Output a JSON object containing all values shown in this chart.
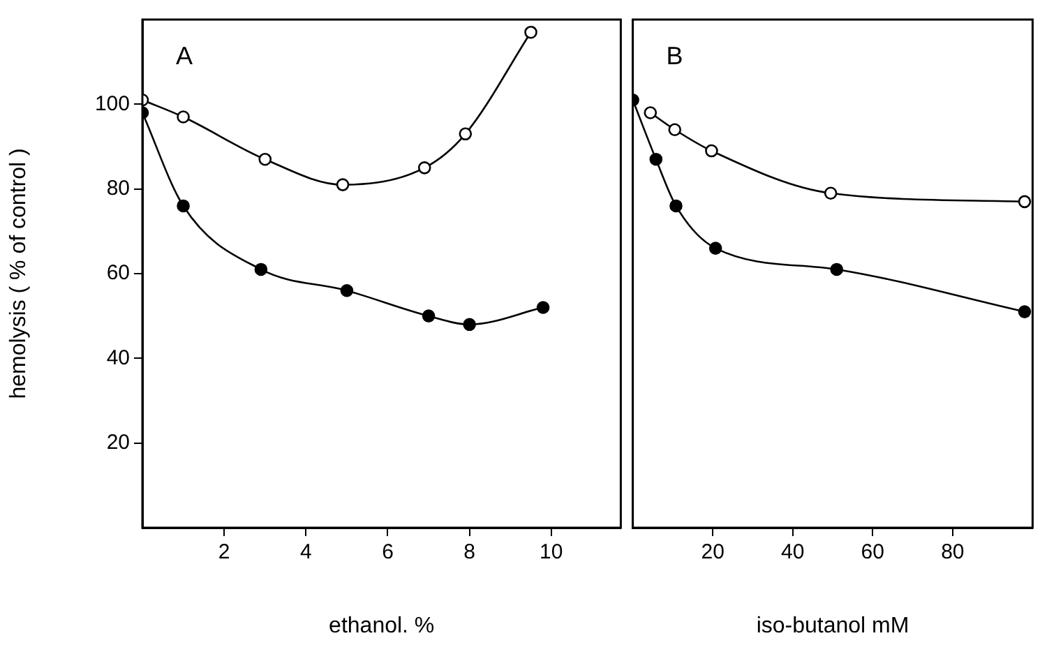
{
  "chart_data": [
    {
      "type": "line",
      "xlabel": "ethanol. %",
      "ylabel": "hemolysis ( % of control )",
      "annotations": [
        "A"
      ],
      "xlim": [
        0,
        11.7
      ],
      "xticks": [
        2,
        4,
        6,
        8,
        10
      ],
      "ylim": [
        0,
        120
      ],
      "yticks": [
        20,
        40,
        60,
        80,
        100
      ],
      "grid": false,
      "legend": false,
      "marker": "circle",
      "line_style": "solid",
      "series": [
        {
          "color": "#000000",
          "x": [
            0,
            1,
            3,
            4.9,
            6.9,
            7.9,
            9.5
          ],
          "values": [
            101,
            97,
            87,
            81,
            85,
            93,
            117
          ]
        },
        {
          "color": "#000000",
          "x": [
            0,
            1,
            2.9,
            5,
            7,
            8,
            9.8
          ],
          "values": [
            98,
            76,
            61,
            56,
            50,
            48,
            52
          ]
        }
      ]
    },
    {
      "type": "line",
      "xlabel": "iso-butanol mM",
      "annotations": [
        "B"
      ],
      "xlim": [
        0,
        100
      ],
      "xticks": [
        20,
        40,
        60,
        80
      ],
      "ylim": [
        0,
        120
      ],
      "yticks": [
        20,
        40,
        60,
        80,
        100
      ],
      "tick_labels": "x",
      "grid": false,
      "legend": false,
      "marker": "circle",
      "line_style": "solid",
      "series": [
        {
          "color": "#000000",
          "x": [
            4.4,
            10.5,
            19.7,
            49.5,
            98
          ],
          "values": [
            98,
            94,
            89,
            79,
            77
          ]
        },
        {
          "color": "#000000",
          "x": [
            0,
            5.8,
            10.8,
            20.7,
            51,
            98
          ],
          "values": [
            101,
            87,
            76,
            66,
            61,
            51
          ]
        }
      ]
    }
  ]
}
